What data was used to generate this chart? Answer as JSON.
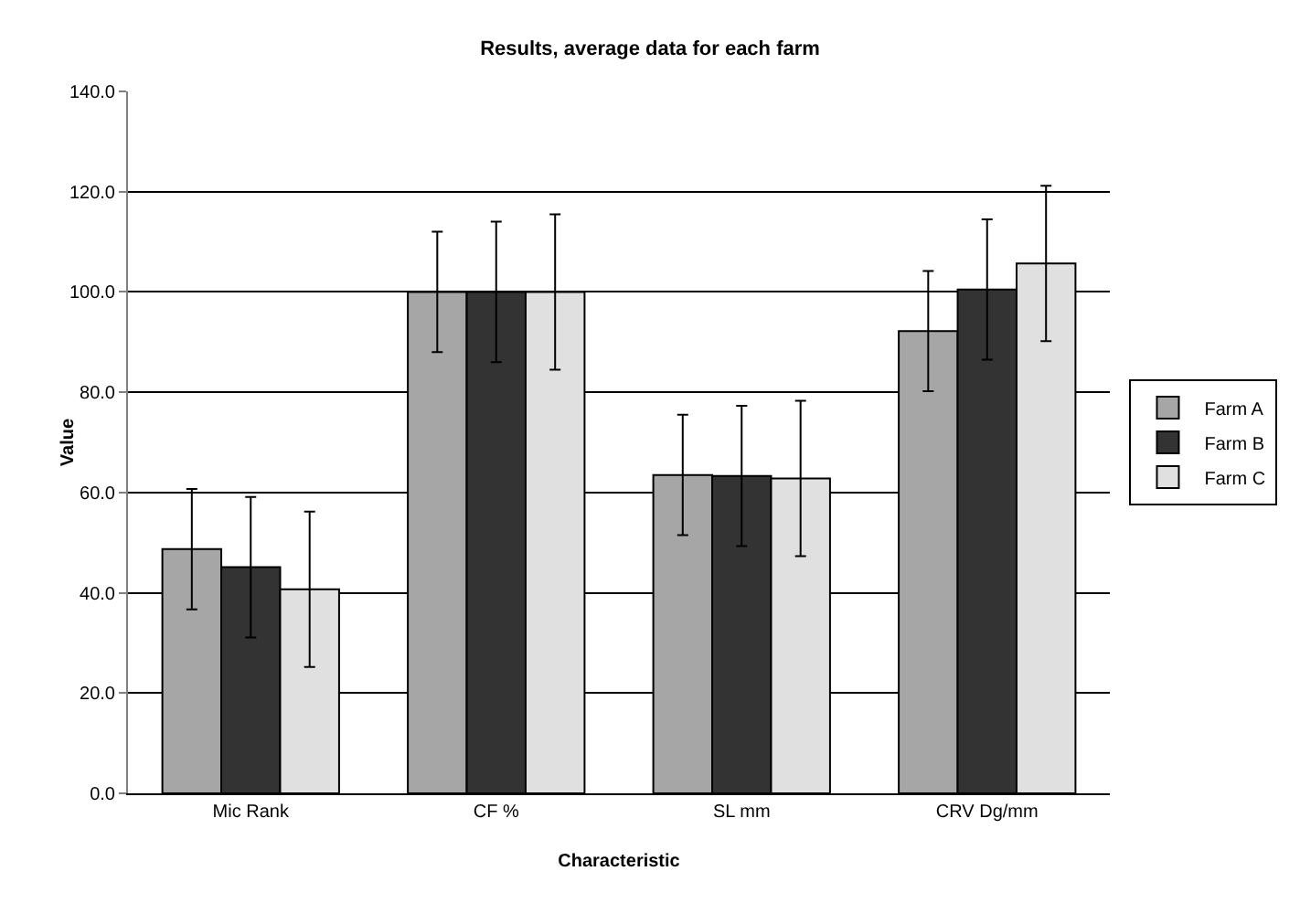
{
  "chart_data": {
    "type": "bar",
    "title": "Results, average data for each farm",
    "xlabel": "Characteristic",
    "ylabel": "Value",
    "categories": [
      "Mic Rank",
      "CF %",
      "SL mm",
      "CRV Dg/mm"
    ],
    "series": [
      {
        "name": "Farm A",
        "color": "#a6a6a6",
        "values": [
          48.7,
          100,
          63.5,
          92.2
        ],
        "errors": [
          12,
          12,
          12,
          12
        ]
      },
      {
        "name": "Farm B",
        "color": "#333333",
        "values": [
          45.1,
          100,
          63.3,
          100.5
        ],
        "errors": [
          14,
          14,
          14,
          14
        ]
      },
      {
        "name": "Farm C",
        "color": "#e0e0e0",
        "values": [
          40.7,
          100,
          62.8,
          105.7
        ],
        "errors": [
          15.5,
          15.5,
          15.5,
          15.5
        ]
      }
    ],
    "ylim": [
      0,
      140
    ],
    "yticks": [
      {
        "value": 0,
        "label": "0.0"
      },
      {
        "value": 20,
        "label": "20.0"
      },
      {
        "value": 40,
        "label": "40.0"
      },
      {
        "value": 60,
        "label": "60.0"
      },
      {
        "value": 80,
        "label": "80.0"
      },
      {
        "value": 100,
        "label": "100.0"
      },
      {
        "value": 120,
        "label": "120.0"
      },
      {
        "value": 140,
        "label": "140.0"
      }
    ],
    "grid": "y",
    "legend": "right"
  }
}
